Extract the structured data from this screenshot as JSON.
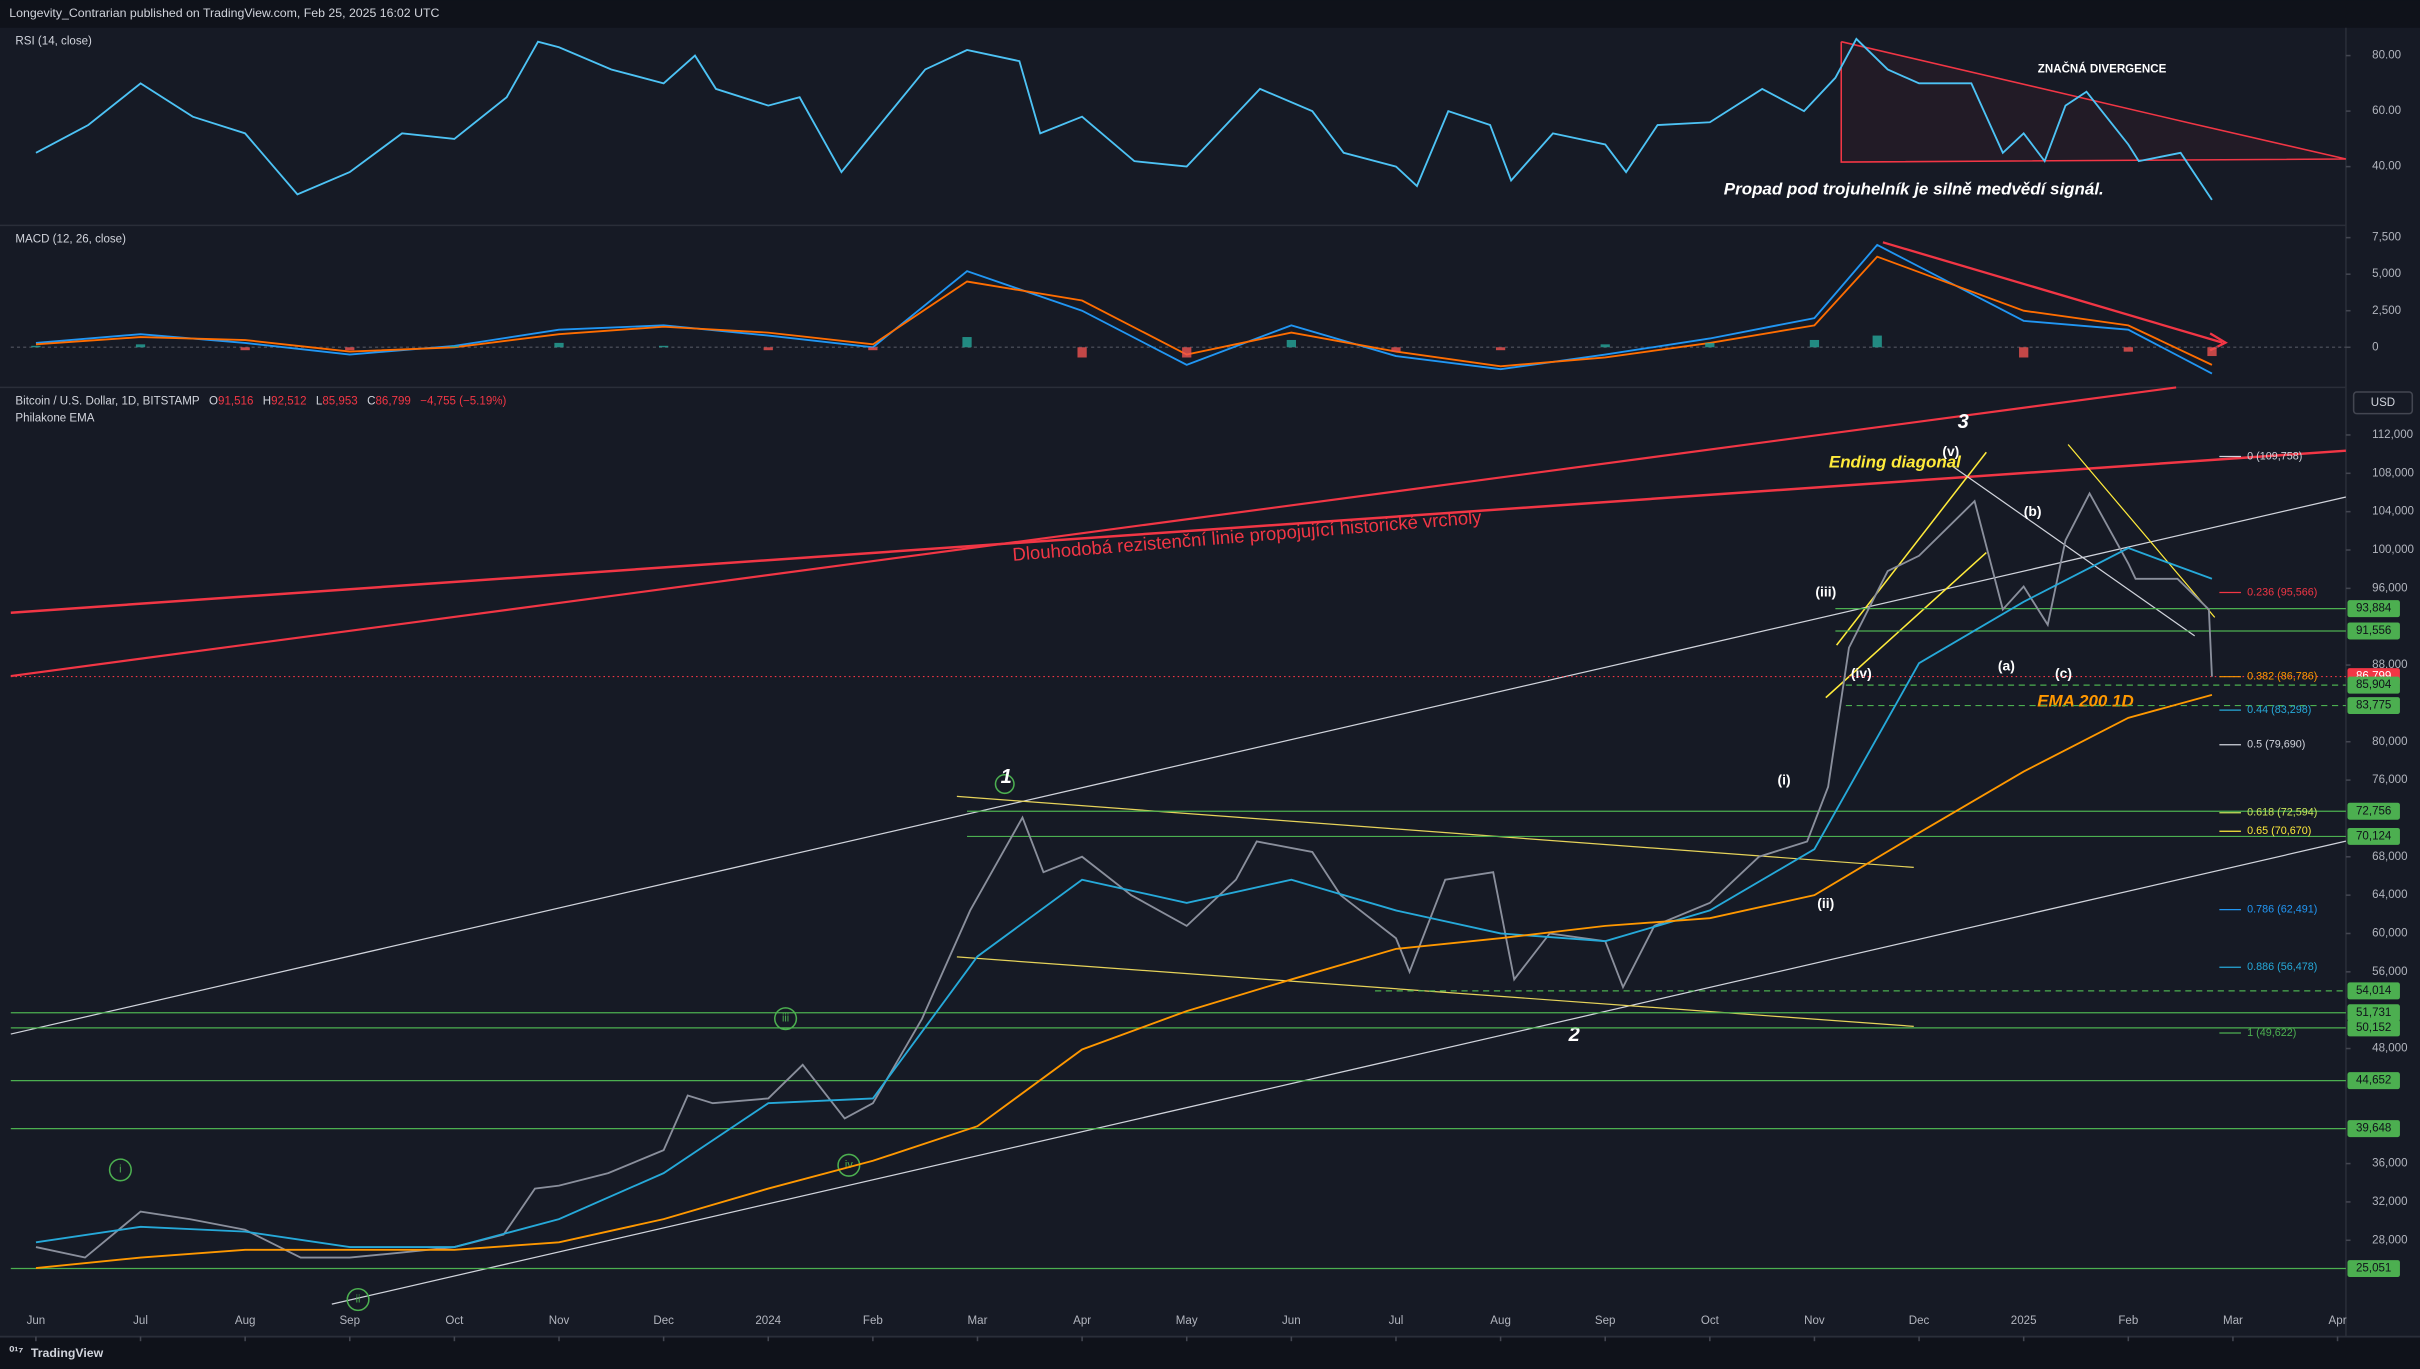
{
  "header": "Longevity_Contrarian published on TradingView.com, Feb 25, 2025 16:02 UTC",
  "footer": "TradingView",
  "chart_data": [
    {
      "type": "line",
      "title": "RSI (14, close)",
      "xlim": [
        -0.24,
        22.08
      ],
      "ylim": [
        19.4,
        88.9
      ],
      "yticks": [
        {
          "value": 80,
          "label": "80.00"
        },
        {
          "value": 60,
          "label": "60.00"
        },
        {
          "value": 40,
          "label": "40.00"
        }
      ],
      "series": [
        {
          "color": "#4dc3f5",
          "x": [
            0,
            0.5,
            1,
            1.5,
            2,
            2.5,
            3,
            3.5,
            4,
            4.5,
            4.8,
            5,
            5.5,
            6,
            6.3,
            6.5,
            7,
            7.3,
            7.7,
            8,
            8.5,
            8.9,
            9.4,
            9.6,
            10,
            10.5,
            11,
            11.5,
            11.7,
            12.2,
            12.5,
            13,
            13.2,
            13.5,
            13.9,
            14.1,
            14.5,
            15,
            15.2,
            15.5,
            16,
            16.5,
            16.9,
            17.2,
            17.4,
            17.7,
            18,
            18.5,
            18.8,
            19,
            19.2,
            19.4,
            19.6,
            20,
            20.1,
            20.5,
            20.8
          ],
          "values": [
            45,
            55,
            70,
            58,
            52,
            30,
            38,
            52,
            50,
            65,
            85,
            83,
            75,
            70,
            80,
            68,
            62,
            65,
            38,
            52,
            75,
            82,
            78,
            52,
            58,
            42,
            40,
            60,
            68,
            60,
            45,
            40,
            33,
            60,
            55,
            35,
            52,
            48,
            38,
            55,
            56,
            68,
            60,
            72,
            86,
            75,
            70,
            70,
            45,
            52,
            42,
            62,
            67,
            48,
            42,
            45,
            28
          ]
        }
      ],
      "annotations": [
        "ZNAČNÁ DIVERGENCE",
        "Propad pod trojuhelník je silně medvědí signál."
      ]
    },
    {
      "type": "line",
      "title": "MACD (12, 26, close)",
      "xlim": [
        -0.24,
        22.08
      ],
      "ylim": [
        -2640,
        8130
      ],
      "yticks": [
        {
          "value": 7500,
          "label": "7,500"
        },
        {
          "value": 5000,
          "label": "5,000"
        },
        {
          "value": 2500,
          "label": "2,500"
        },
        0
      ],
      "series": [
        {
          "color": "#2196f3",
          "x": [
            0,
            1,
            2,
            3,
            4,
            5,
            6,
            7,
            8,
            8.9,
            10,
            11,
            12,
            13,
            14,
            15,
            16,
            17,
            17.6,
            19,
            20,
            20.8
          ],
          "values": [
            300,
            900,
            300,
            -500,
            100,
            1200,
            1500,
            800,
            0,
            5200,
            2500,
            -1200,
            1500,
            -600,
            -1500,
            -500,
            600,
            2000,
            7000,
            1800,
            1200,
            -1800
          ]
        },
        {
          "color": "#ff6d00",
          "x": [
            0,
            1,
            2,
            3,
            4,
            5,
            6,
            7,
            8,
            8.9,
            10,
            11,
            12,
            13,
            14,
            15,
            16,
            17,
            17.6,
            19,
            20,
            20.8
          ],
          "values": [
            200,
            700,
            500,
            -300,
            0,
            900,
            1400,
            1000,
            200,
            4500,
            3200,
            -500,
            1000,
            -300,
            -1300,
            -700,
            300,
            1500,
            6200,
            2500,
            1500,
            -1200
          ]
        },
        {
          "type": "bar",
          "color": "#26a69a",
          "negative_color": "#ef5350",
          "x": [
            0,
            1,
            2,
            3,
            4,
            5,
            6,
            7,
            8,
            8.9,
            10,
            11,
            12,
            13,
            14,
            15,
            16,
            17,
            17.6,
            19,
            20,
            20.8
          ],
          "values": [
            100,
            200,
            -200,
            -200,
            100,
            300,
            100,
            -200,
            -200,
            700,
            -700,
            -700,
            500,
            -300,
            -200,
            200,
            300,
            500,
            800,
            -700,
            -300,
            -600
          ]
        }
      ]
    },
    {
      "type": "line",
      "title": "Bitcoin / U.S. Dollar, 1D, BITSTAMP",
      "ohlc": [
        {
          "key": "O",
          "value": "91,516"
        },
        {
          "key": "H",
          "value": "92,512"
        },
        {
          "key": "L",
          "value": "85,953"
        },
        {
          "key": "C",
          "value": "86,799"
        }
      ],
      "change": "−4,755 (−5.19%)",
      "indicator": "Philakone EMA",
      "currency": "USD",
      "xlim": [
        -0.24,
        22.08
      ],
      "ylim": [
        18600,
        116800
      ],
      "yticks": [
        {
          "value": 112000,
          "label": "112,000"
        },
        {
          "value": 108000,
          "label": "108,000"
        },
        {
          "value": 104000,
          "label": "104,000"
        },
        {
          "value": 100000,
          "label": "100,000"
        },
        {
          "value": 96000,
          "label": "96,000"
        },
        {
          "value": 88000,
          "label": "88,000"
        },
        {
          "value": 80000,
          "label": "80,000"
        },
        {
          "value": 76000,
          "label": "76,000"
        },
        {
          "value": 68000,
          "label": "68,000"
        },
        {
          "value": 64000,
          "label": "64,000"
        },
        {
          "value": 60000,
          "label": "60,000"
        },
        {
          "value": 56000,
          "label": "56,000"
        },
        {
          "value": 48000,
          "label": "48,000"
        },
        {
          "value": 36000,
          "label": "36,000"
        },
        {
          "value": 32000,
          "label": "32,000"
        },
        {
          "value": 28000,
          "label": "28,000"
        }
      ],
      "xticks": [
        {
          "value": 0,
          "label": "Jun"
        },
        {
          "value": 1,
          "label": "Jul"
        },
        {
          "value": 2,
          "label": "Aug"
        },
        {
          "value": 3,
          "label": "Sep"
        },
        {
          "value": 4,
          "label": "Oct"
        },
        {
          "value": 5,
          "label": "Nov"
        },
        {
          "value": 6,
          "label": "Dec"
        },
        {
          "value": 7,
          "label": "2024"
        },
        {
          "value": 8,
          "label": "Feb"
        },
        {
          "value": 9,
          "label": "Mar"
        },
        {
          "value": 10,
          "label": "Apr"
        },
        {
          "value": 11,
          "label": "May"
        },
        {
          "value": 12,
          "label": "Jun"
        },
        {
          "value": 13,
          "label": "Jul"
        },
        {
          "value": 14,
          "label": "Aug"
        },
        {
          "value": 15,
          "label": "Sep"
        },
        {
          "value": 16,
          "label": "Oct"
        },
        {
          "value": 17,
          "label": "Nov"
        },
        {
          "value": 18,
          "label": "Dec"
        },
        {
          "value": 19,
          "label": "2025"
        },
        {
          "value": 20,
          "label": "Feb"
        },
        {
          "value": 21,
          "label": "Mar"
        },
        {
          "value": 22,
          "label": "Apr"
        }
      ],
      "series": [
        {
          "color": "#8a8f9c",
          "x": [
            0,
            0.47,
            1,
            1.47,
            2,
            2.53,
            3,
            3.47,
            4,
            4.47,
            4.77,
            5,
            5.47,
            6,
            6.23,
            6.47,
            7,
            7.33,
            7.73,
            8,
            8.47,
            8.93,
            9.43,
            9.63,
            10,
            10.47,
            11,
            11.47,
            11.67,
            12.2,
            12.47,
            13,
            13.13,
            13.47,
            13.93,
            14.13,
            14.47,
            15,
            15.17,
            15.47,
            16,
            16.47,
            16.93,
            17.13,
            17.33,
            17.7,
            18,
            18.53,
            18.8,
            19,
            19.23,
            19.4,
            19.63,
            20,
            20.07,
            20.47,
            20.77,
            20.8
          ],
          "values": [
            27300,
            26200,
            31000,
            30200,
            29100,
            26200,
            26200,
            26700,
            27300,
            28600,
            33400,
            33700,
            35000,
            37400,
            43100,
            42300,
            42800,
            46300,
            40700,
            42300,
            51100,
            62400,
            72100,
            66400,
            68000,
            64000,
            60800,
            65600,
            69600,
            68500,
            64000,
            59500,
            56000,
            65600,
            66400,
            55200,
            60000,
            59200,
            54400,
            60800,
            63200,
            68000,
            69600,
            75300,
            89800,
            97800,
            99400,
            105100,
            93800,
            96200,
            92200,
            101000,
            105900,
            98600,
            97000,
            97000,
            93800,
            86799
          ]
        },
        {
          "color": "#26a9d9",
          "x": [
            0,
            1,
            2,
            3,
            4,
            5,
            6,
            7,
            8,
            9,
            10,
            11,
            12,
            13,
            14,
            15,
            16,
            17,
            18,
            19,
            20,
            20.8
          ],
          "values": [
            27800,
            29400,
            28900,
            27300,
            27300,
            30200,
            35000,
            42300,
            42800,
            57600,
            65600,
            63200,
            65600,
            62400,
            60000,
            59200,
            62400,
            68800,
            88200,
            94600,
            100200,
            97000
          ]
        },
        {
          "color": "#ff9800",
          "x": [
            0,
            1,
            2,
            3,
            4,
            5,
            6,
            7,
            8,
            9,
            10,
            11,
            12,
            13,
            14,
            15,
            16,
            17,
            18,
            19,
            20,
            20.8
          ],
          "values": [
            25100,
            26200,
            27000,
            27000,
            27000,
            27800,
            30200,
            33400,
            36300,
            39900,
            47900,
            51900,
            55200,
            58400,
            59500,
            60800,
            61600,
            64000,
            70500,
            76900,
            82500,
            84900
          ]
        }
      ],
      "levels": [
        {
          "value": 93884,
          "label": "93,884",
          "color": "#4caf50",
          "x_start": 17.2
        },
        {
          "value": 91556,
          "label": "91,556",
          "color": "#4caf50",
          "x_start": 17.2
        },
        {
          "value": 86799,
          "label": "86,799",
          "color": "#f23645",
          "x_start": -0.24,
          "style": "dotted"
        },
        {
          "value": 85904,
          "label": "85,904",
          "color": "#4caf50",
          "x_start": 17.3,
          "style": "dashed"
        },
        {
          "value": 83775,
          "label": "83,775",
          "color": "#4caf50",
          "x_start": 17.3,
          "style": "dashed"
        },
        {
          "value": 72756,
          "label": "72,756",
          "color": "#4caf50",
          "x_start": 8.9
        },
        {
          "value": 70124,
          "label": "70,124",
          "color": "#4caf50",
          "x_start": 8.9
        },
        {
          "value": 54014,
          "label": "54,014",
          "color": "#4caf50",
          "x_start": 12.8,
          "style": "dashed"
        },
        {
          "value": 51731,
          "label": "51,731",
          "color": "#4caf50",
          "x_start": -0.24
        },
        {
          "value": 50152,
          "label": "50,152",
          "color": "#4caf50",
          "x_start": -0.24
        },
        {
          "value": 44652,
          "label": "44,652",
          "color": "#4caf50",
          "x_start": -0.24
        },
        {
          "value": 39648,
          "label": "39,648",
          "color": "#4caf50",
          "x_start": -0.24
        },
        {
          "value": 25051,
          "label": "25,051",
          "color": "#4caf50",
          "x_start": -0.24
        }
      ],
      "fib_levels": [
        {
          "value": 109758,
          "label": "0 (109,758)",
          "color": "#d1d4dc"
        },
        {
          "value": 95566,
          "label": "0.236 (95,566)",
          "color": "#f23645"
        },
        {
          "value": 86786,
          "label": "0.382 (86,786)",
          "color": "#ff9800"
        },
        {
          "value": 83298,
          "label": "0.44 (83,298)",
          "color": "#26a9d9"
        },
        {
          "value": 79690,
          "label": "0.5 (79,690)",
          "color": "#d1d4dc"
        },
        {
          "value": 72594,
          "label": "0.618 (72,594)",
          "color": "#c8e65a"
        },
        {
          "value": 70670,
          "label": "0.65 (70,670)",
          "color": "#ffeb3b"
        },
        {
          "value": 62491,
          "label": "0.786 (62,491)",
          "color": "#2196f3"
        },
        {
          "value": 56478,
          "label": "0.886 (56,478)",
          "color": "#26a9d9"
        },
        {
          "value": 49622,
          "label": "1 (49,622)",
          "color": "#4caf50"
        }
      ],
      "annotations": [
        "Ending diagonal",
        "Dlouhodobá rezistenční linie propojující historické vrcholy",
        "EMA 200 1D",
        "3",
        "(v)",
        "(iii)",
        "(iv)",
        "(i)",
        "(ii)",
        "(b)",
        "(a)",
        "(c)",
        "1",
        "2",
        "iii",
        "iv",
        "i",
        "ii"
      ]
    }
  ]
}
